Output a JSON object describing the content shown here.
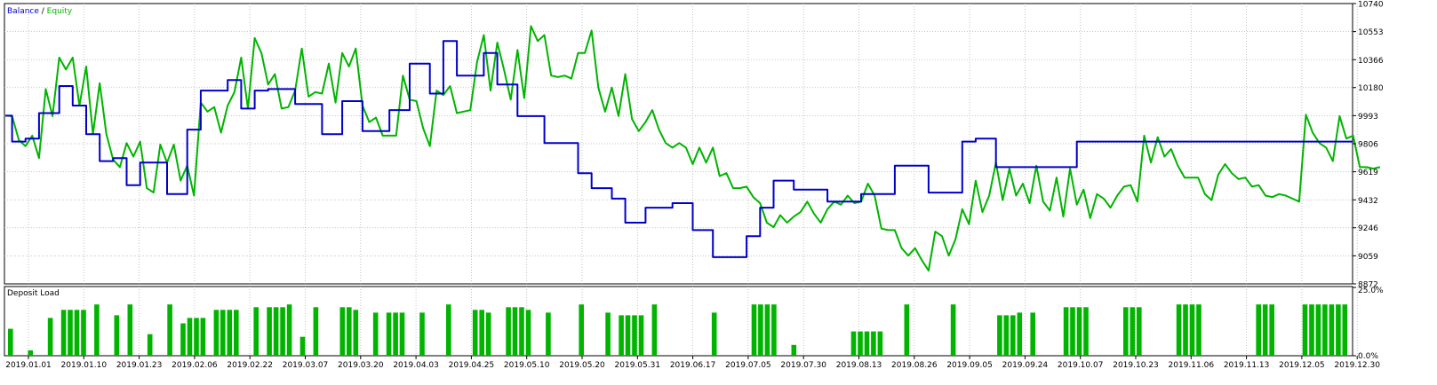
{
  "chart_data": [
    {
      "type": "line",
      "title_parts": {
        "balance": "Balance",
        "separator": " / ",
        "equity": "Equity"
      },
      "ylim": [
        8872,
        10740
      ],
      "y_ticks": [
        8872,
        9059,
        9246,
        9432,
        9619,
        9806,
        9993,
        10180,
        10366,
        10553,
        10740
      ],
      "grid": true,
      "x_count": 200,
      "series": [
        {
          "name": "Balance",
          "color": "#0000c8",
          "step": true,
          "values": [
            9993,
            9820,
            9820,
            9840,
            9840,
            10010,
            10010,
            10010,
            10190,
            10190,
            10060,
            10060,
            9870,
            9870,
            9690,
            9690,
            9710,
            9710,
            9530,
            9530,
            9680,
            9680,
            9680,
            9680,
            9470,
            9470,
            9470,
            9900,
            9900,
            10160,
            10160,
            10160,
            10160,
            10230,
            10230,
            10040,
            10040,
            10160,
            10160,
            10170,
            10170,
            10170,
            10170,
            10070,
            10070,
            10070,
            10070,
            9870,
            9870,
            9870,
            10090,
            10090,
            10090,
            9890,
            9890,
            9890,
            9890,
            10030,
            10030,
            10030,
            10340,
            10340,
            10340,
            10140,
            10140,
            10490,
            10490,
            10260,
            10260,
            10260,
            10260,
            10410,
            10410,
            10200,
            10200,
            10200,
            9990,
            9990,
            9990,
            9990,
            9810,
            9810,
            9810,
            9810,
            9810,
            9610,
            9610,
            9510,
            9510,
            9510,
            9440,
            9440,
            9280,
            9280,
            9280,
            9380,
            9380,
            9380,
            9380,
            9410,
            9410,
            9410,
            9230,
            9230,
            9230,
            9050,
            9050,
            9050,
            9050,
            9050,
            9190,
            9190,
            9380,
            9380,
            9560,
            9560,
            9560,
            9500,
            9500,
            9500,
            9500,
            9500,
            9420,
            9420,
            9420,
            9420,
            9420,
            9470,
            9470,
            9470,
            9470,
            9470,
            9660,
            9660,
            9660,
            9660,
            9660,
            9480,
            9480,
            9480,
            9480,
            9480,
            9820,
            9820,
            9840,
            9840,
            9840,
            9650,
            9650,
            9650,
            9650,
            9650,
            9650,
            9650,
            9650,
            9650,
            9650,
            9650,
            9650,
            9820,
            9820,
            9820,
            9820,
            9820,
            9820,
            9820,
            9820,
            9820,
            9820,
            9820,
            9820,
            9820,
            9820,
            9820,
            9820,
            9820,
            9820,
            9820,
            9820,
            9820,
            9820,
            9820,
            9820,
            9820,
            9820,
            9820,
            9820,
            9820,
            9820,
            9820,
            9820,
            9820,
            9820,
            9820,
            9820,
            9820,
            9820,
            9820,
            9820,
            9820,
            9820
          ]
        },
        {
          "name": "Equity",
          "color": "#00b400",
          "step": false,
          "values": [
            9993,
            9990,
            9830,
            9790,
            9860,
            9710,
            10170,
            9990,
            10380,
            10300,
            10380,
            10060,
            10320,
            9870,
            10210,
            9870,
            9700,
            9650,
            9810,
            9720,
            9820,
            9510,
            9480,
            9800,
            9680,
            9800,
            9560,
            9660,
            9460,
            10080,
            10020,
            10050,
            9880,
            10060,
            10150,
            10380,
            10040,
            10510,
            10410,
            10200,
            10270,
            10040,
            10050,
            10160,
            10440,
            10120,
            10150,
            10140,
            10340,
            10080,
            10410,
            10320,
            10440,
            10060,
            9950,
            9980,
            9860,
            9860,
            9860,
            10260,
            10100,
            10090,
            9910,
            9790,
            10160,
            10130,
            10190,
            10010,
            10020,
            10030,
            10350,
            10530,
            10160,
            10480,
            10300,
            10100,
            10430,
            10110,
            10590,
            10490,
            10530,
            10260,
            10250,
            10260,
            10240,
            10410,
            10410,
            10560,
            10180,
            10020,
            10180,
            9990,
            10270,
            9970,
            9890,
            9950,
            10030,
            9900,
            9810,
            9780,
            9810,
            9780,
            9670,
            9780,
            9680,
            9780,
            9590,
            9610,
            9510,
            9510,
            9520,
            9450,
            9410,
            9280,
            9250,
            9330,
            9280,
            9320,
            9350,
            9420,
            9340,
            9280,
            9370,
            9420,
            9400,
            9460,
            9410,
            9420,
            9540,
            9460,
            9240,
            9230,
            9230,
            9110,
            9060,
            9110,
            9030,
            8960,
            9220,
            9190,
            9060,
            9170,
            9370,
            9270,
            9560,
            9350,
            9460,
            9680,
            9430,
            9640,
            9460,
            9540,
            9410,
            9660,
            9420,
            9360,
            9580,
            9320,
            9640,
            9400,
            9500,
            9310,
            9470,
            9440,
            9380,
            9460,
            9520,
            9530,
            9420,
            9860,
            9680,
            9850,
            9720,
            9770,
            9660,
            9580,
            9580,
            9580,
            9470,
            9430,
            9600,
            9670,
            9610,
            9570,
            9580,
            9520,
            9530,
            9460,
            9450,
            9470,
            9460,
            9440,
            9420,
            10000,
            9880,
            9810,
            9780,
            9690,
            9990,
            9840,
            9860,
            9650,
            9650,
            9640,
            9650
          ]
        }
      ]
    },
    {
      "type": "bar",
      "title": "Deposit Load",
      "ylim": [
        0,
        25
      ],
      "y_ticks": [
        "25.0%",
        "0.0%"
      ],
      "x_tick_labels": [
        "2019.01.01",
        "2019.01.10",
        "2019.01.23",
        "2019.02.06",
        "2019.02.22",
        "2019.03.07",
        "2019.03.20",
        "2019.04.03",
        "2019.04.25",
        "2019.05.10",
        "2019.05.20",
        "2019.05.31",
        "2019.06.17",
        "2019.07.05",
        "2019.07.30",
        "2019.08.13",
        "2019.08.26",
        "2019.09.05",
        "2019.09.24",
        "2019.10.07",
        "2019.10.23",
        "2019.11.06",
        "2019.11.13",
        "2019.12.05",
        "2019.12.30"
      ],
      "color": "#00b400",
      "values": [
        10,
        0,
        0,
        2,
        0,
        0,
        14,
        0,
        17,
        17,
        17,
        17,
        0,
        19,
        0,
        0,
        15,
        0,
        19,
        0,
        0,
        8,
        0,
        0,
        19,
        0,
        12,
        14,
        14,
        14,
        0,
        17,
        17,
        17,
        17,
        0,
        0,
        18,
        0,
        18,
        18,
        18,
        19,
        0,
        7,
        0,
        18,
        0,
        0,
        0,
        18,
        18,
        17,
        0,
        0,
        16,
        0,
        16,
        16,
        16,
        0,
        0,
        16,
        0,
        0,
        0,
        19,
        0,
        0,
        0,
        17,
        17,
        16,
        0,
        0,
        18,
        18,
        18,
        17,
        0,
        0,
        16,
        0,
        0,
        0,
        0,
        19,
        0,
        0,
        0,
        16,
        0,
        15,
        15,
        15,
        15,
        0,
        19,
        0,
        0,
        0,
        0,
        0,
        0,
        0,
        0,
        16,
        0,
        0,
        0,
        0,
        0,
        19,
        19,
        19,
        19,
        0,
        0,
        4,
        0,
        0,
        0,
        0,
        0,
        0,
        0,
        0,
        9,
        9,
        9,
        9,
        9,
        0,
        0,
        0,
        19,
        0,
        0,
        0,
        0,
        0,
        0,
        19,
        0,
        0,
        0,
        0,
        0,
        0,
        15,
        15,
        15,
        16,
        0,
        16,
        0,
        0,
        0,
        0,
        18,
        18,
        18,
        18,
        0,
        0,
        0,
        0,
        0,
        18,
        18,
        18,
        0,
        0,
        0,
        0,
        0,
        19,
        19,
        19,
        19,
        0,
        0,
        0,
        0,
        0,
        0,
        0,
        0,
        19,
        19,
        19,
        0,
        0,
        0,
        0,
        19,
        19,
        19,
        19,
        19,
        19,
        19
      ]
    }
  ]
}
